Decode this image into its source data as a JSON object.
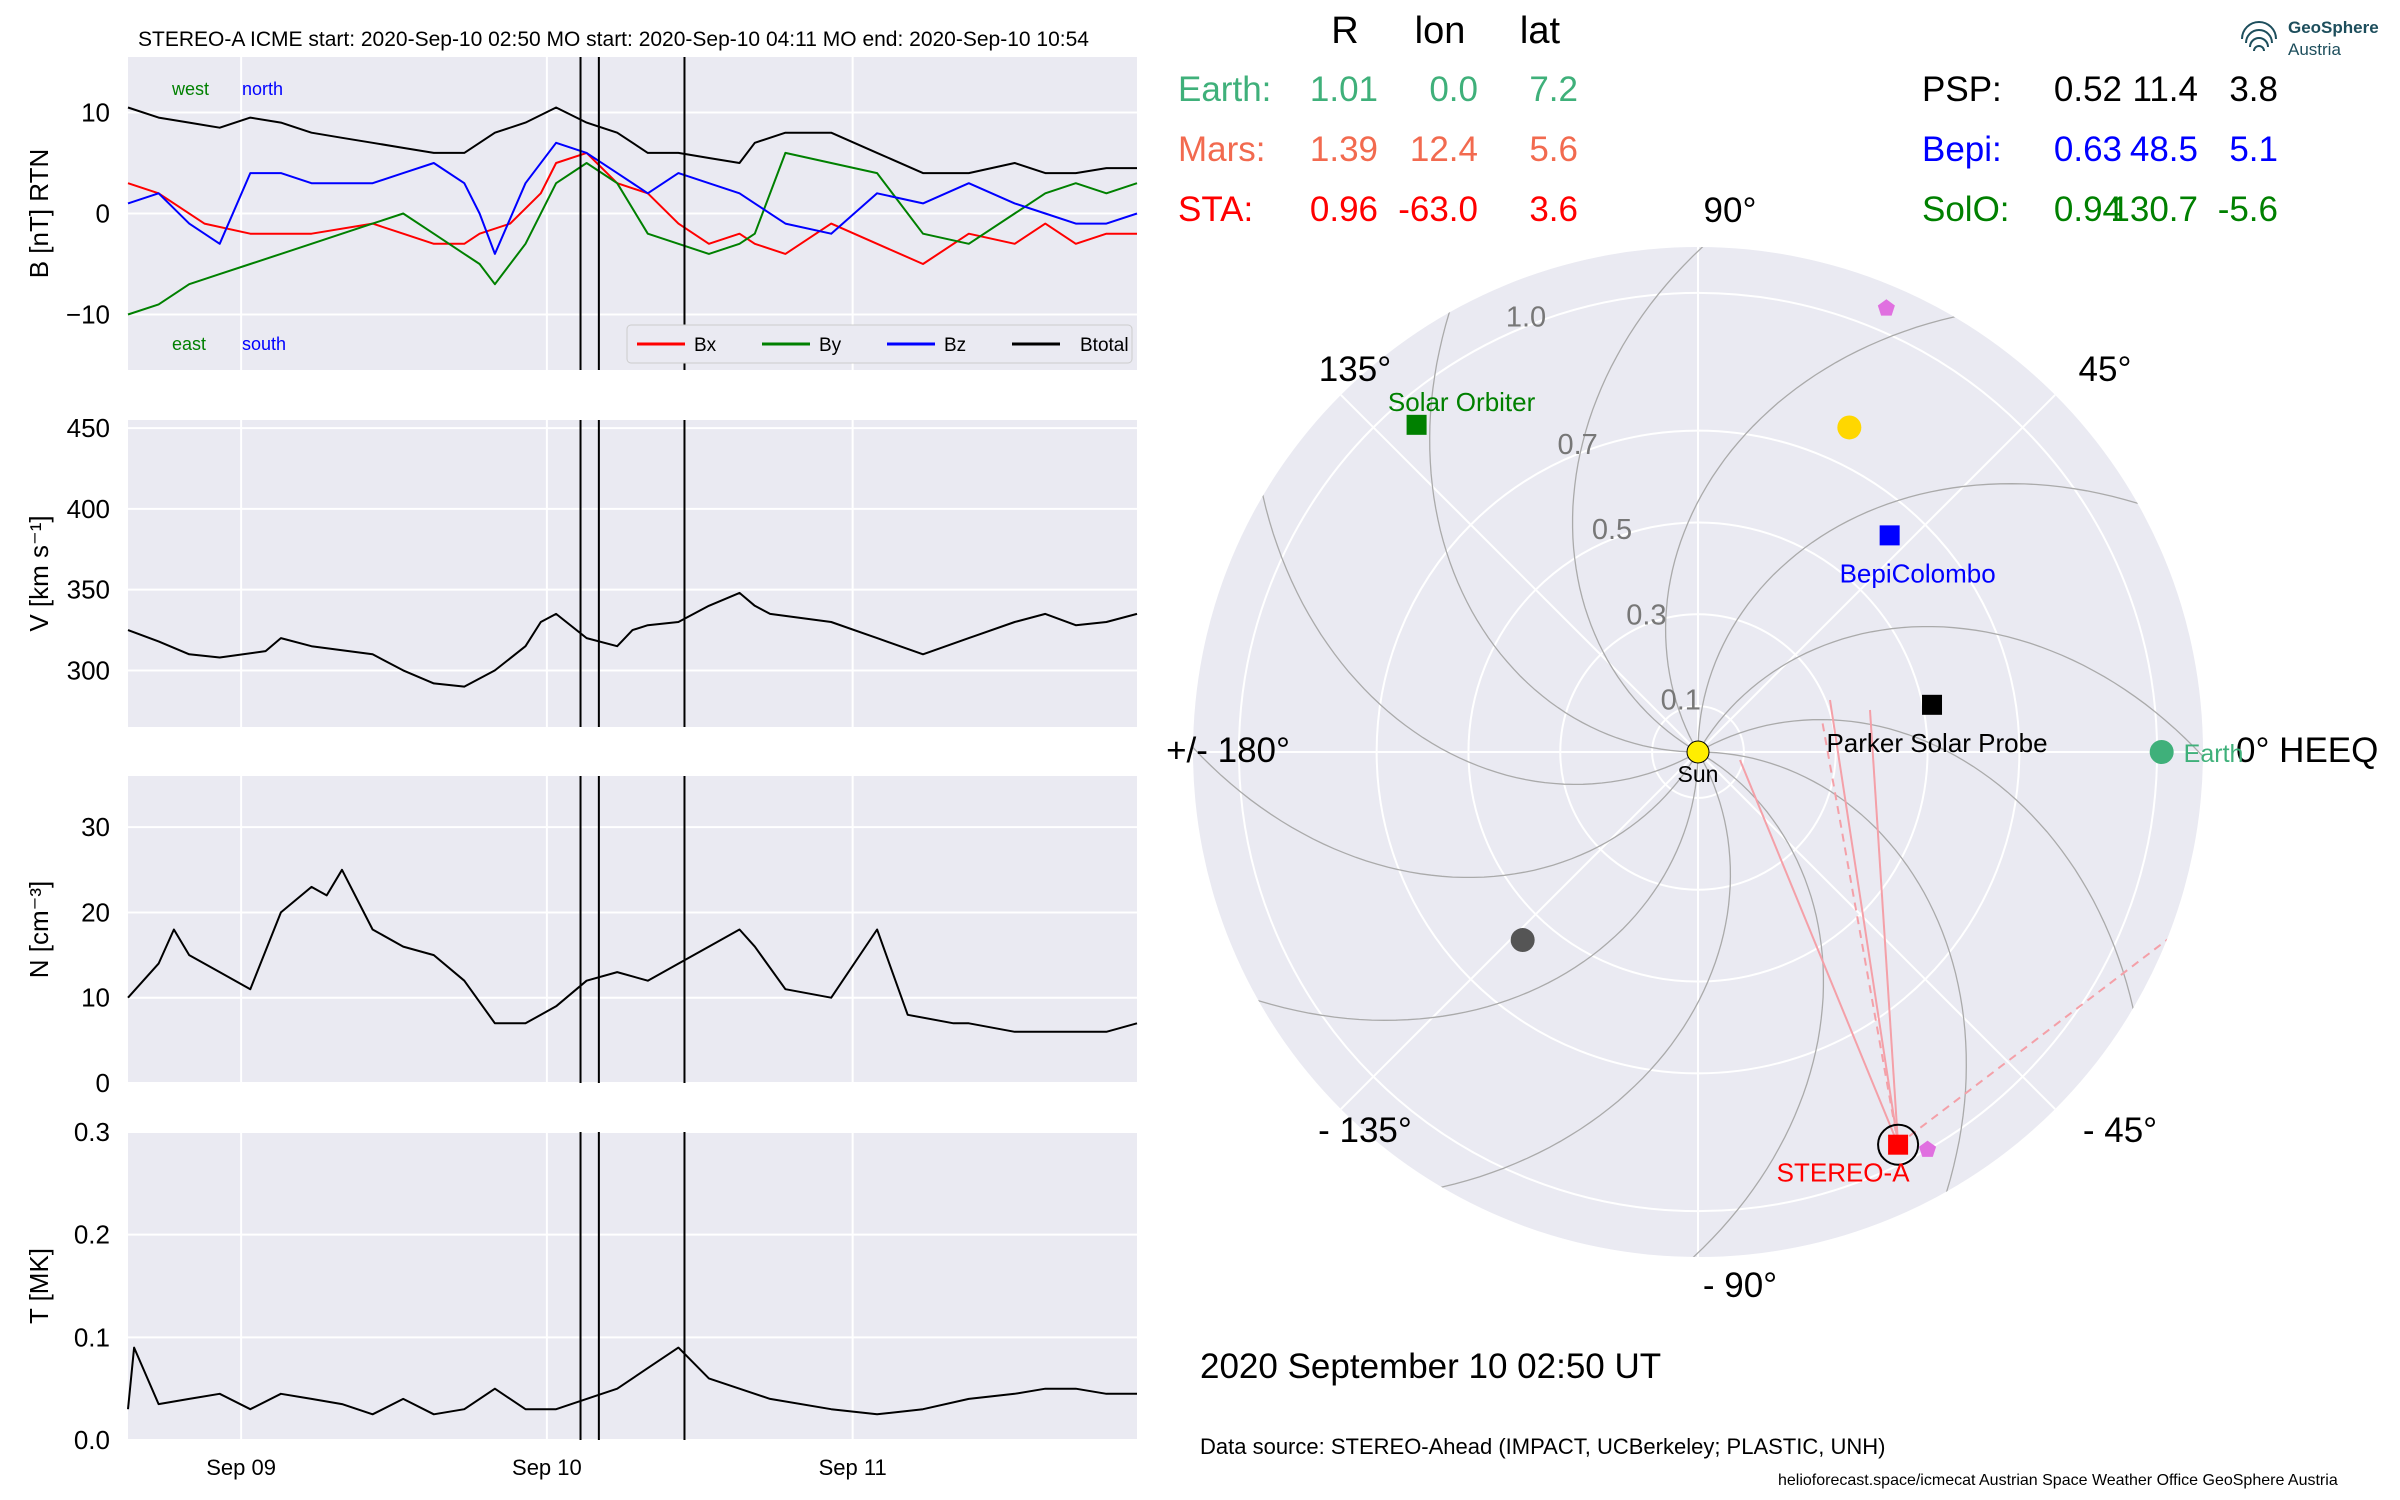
{
  "header": {
    "title": "STEREO-A    ICME start: 2020-Sep-10 02:50    MO start: 2020-Sep-10 04:11    MO end: 2020-Sep-10 10:54"
  },
  "logo": {
    "line1": "GeoSphere",
    "line2": "Austria"
  },
  "colors": {
    "earth": "#3fb07a",
    "mars": "#f26a4f",
    "sta": "#ff0000",
    "psp": "#000000",
    "bepi": "#0000ff",
    "solo": "#008000",
    "panel_bg": "#eaeaf2",
    "pink": "#e070e0"
  },
  "position_table": {
    "headers": [
      "R",
      "lon",
      "lat"
    ],
    "left": [
      {
        "name": "Earth:",
        "R": "1.01",
        "lon": "0.0",
        "lat": "7.2"
      },
      {
        "name": "Mars:",
        "R": "1.39",
        "lon": "12.4",
        "lat": "5.6"
      },
      {
        "name": "STA:",
        "R": "0.96",
        "lon": "-63.0",
        "lat": "3.6"
      }
    ],
    "right": [
      {
        "name": "PSP:",
        "R": "0.52",
        "lon": "11.4",
        "lat": "3.8"
      },
      {
        "name": "Bepi:",
        "R": "0.63",
        "lon": "48.5",
        "lat": "5.1"
      },
      {
        "name": "SolO:",
        "R": "0.94",
        "lon": "130.7",
        "lat": "-5.6"
      }
    ]
  },
  "polar_plot": {
    "angle_labels": [
      "90°",
      "45°",
      "0° HEEQ",
      "- 45°",
      "- 90°",
      "- 135°",
      "+/- 180°",
      "135°"
    ],
    "radial_labels": [
      "0.1",
      "0.3",
      "0.5",
      "0.7",
      "1.0"
    ],
    "radial_values": [
      0.1,
      0.3,
      0.5,
      0.7,
      1.0
    ],
    "bodies": [
      {
        "label": "Sun",
        "r": 0.0,
        "lon": 0,
        "marker": "circle",
        "color": "#ffee00"
      },
      {
        "label": "Earth",
        "r": 1.01,
        "lon": 0.0,
        "marker": "circle",
        "color": "#3fb07a"
      },
      {
        "label": "Parker Solar Probe",
        "r": 0.52,
        "lon": 11.4,
        "marker": "square",
        "color": "#000000"
      },
      {
        "label": "BepiColombo",
        "r": 0.63,
        "lon": 48.5,
        "marker": "square",
        "color": "#0000ff"
      },
      {
        "label": "Solar Orbiter",
        "r": 0.94,
        "lon": 130.7,
        "marker": "square",
        "color": "#008000"
      },
      {
        "label": "STEREO-A",
        "r": 0.96,
        "lon": -63.0,
        "marker": "square",
        "color": "#ff0000"
      },
      {
        "label": "",
        "r": 0.78,
        "lon": 65.0,
        "marker": "circle",
        "color": "#ffd700"
      },
      {
        "label": "",
        "r": 0.56,
        "lon": -133.0,
        "marker": "circle",
        "color": "#555555"
      },
      {
        "label": "",
        "r": 1.05,
        "lon": 67.0,
        "marker": "pentagon",
        "color": "#e070e0"
      },
      {
        "label": "",
        "r": 1.0,
        "lon": -60.0,
        "marker": "pentagon",
        "color": "#e070e0"
      }
    ],
    "date": "2020 September 10  02:50 UT"
  },
  "footer": {
    "data_source": "Data source: STEREO-Ahead (IMPACT, UCBerkeley; PLASTIC, UNH)",
    "credits": "helioforecast.space/icmecat   Austrian Space Weather Office   GeoSphere Austria"
  },
  "chart_data": [
    {
      "type": "line",
      "ylabel": "B [nT] RTN",
      "ylim": [
        -15.5,
        15.5
      ],
      "yticks": [
        10,
        0,
        -10
      ],
      "ytick_labels": [
        "10",
        "0",
        "−10"
      ],
      "annotations": [
        "west",
        "north",
        "east",
        "south"
      ],
      "legend": "bottom-right",
      "series": [
        {
          "name": "Bx",
          "color": "#ff0000",
          "x": [
            0.0,
            0.1,
            0.25,
            0.4,
            0.6,
            0.8,
            0.9,
            1.0,
            1.1,
            1.15,
            1.25,
            1.35,
            1.4,
            1.5,
            1.6,
            1.7,
            1.8,
            1.9,
            2.0,
            2.05,
            2.15,
            2.3,
            2.45,
            2.6,
            2.75,
            2.9,
            3.0,
            3.1,
            3.2,
            3.3
          ],
          "values": [
            3,
            2,
            -1,
            -2,
            -2,
            -1,
            -2,
            -3,
            -3,
            -2,
            -1,
            2,
            5,
            6,
            3,
            2,
            -1,
            -3,
            -2,
            -3,
            -4,
            -1,
            -3,
            -5,
            -2,
            -3,
            -1,
            -3,
            -2,
            -2
          ]
        },
        {
          "name": "By",
          "color": "#008000",
          "x": [
            0.0,
            0.1,
            0.2,
            0.3,
            0.4,
            0.5,
            0.6,
            0.7,
            0.8,
            0.9,
            1.0,
            1.1,
            1.15,
            1.2,
            1.3,
            1.4,
            1.5,
            1.6,
            1.7,
            1.8,
            1.9,
            2.0,
            2.05,
            2.15,
            2.3,
            2.45,
            2.6,
            2.75,
            2.9,
            3.0,
            3.1,
            3.2,
            3.3
          ],
          "values": [
            -10,
            -9,
            -7,
            -6,
            -5,
            -4,
            -3,
            -2,
            -1,
            0,
            -2,
            -4,
            -5,
            -7,
            -3,
            3,
            5,
            3,
            -2,
            -3,
            -4,
            -3,
            -2,
            6,
            5,
            4,
            -2,
            -3,
            0,
            2,
            3,
            2,
            3
          ]
        },
        {
          "name": "Bz",
          "color": "#0000ff",
          "x": [
            0.0,
            0.1,
            0.2,
            0.3,
            0.4,
            0.5,
            0.6,
            0.7,
            0.8,
            0.9,
            1.0,
            1.1,
            1.15,
            1.2,
            1.3,
            1.4,
            1.5,
            1.6,
            1.7,
            1.8,
            1.9,
            2.0,
            2.05,
            2.15,
            2.3,
            2.45,
            2.6,
            2.75,
            2.9,
            3.0,
            3.1,
            3.2,
            3.3
          ],
          "values": [
            1,
            2,
            -1,
            -3,
            4,
            4,
            3,
            3,
            3,
            4,
            5,
            3,
            0,
            -4,
            3,
            7,
            6,
            4,
            2,
            4,
            3,
            2,
            1,
            -1,
            -2,
            2,
            1,
            3,
            1,
            0,
            -1,
            -1,
            0
          ]
        },
        {
          "name": "Btotal",
          "color": "#000000",
          "x": [
            0.0,
            0.1,
            0.2,
            0.3,
            0.4,
            0.5,
            0.6,
            0.7,
            0.8,
            0.9,
            1.0,
            1.1,
            1.15,
            1.2,
            1.3,
            1.4,
            1.5,
            1.6,
            1.7,
            1.8,
            1.9,
            2.0,
            2.05,
            2.15,
            2.3,
            2.45,
            2.6,
            2.75,
            2.9,
            3.0,
            3.1,
            3.2,
            3.3
          ],
          "values": [
            10.5,
            9.5,
            9,
            8.5,
            9.5,
            9,
            8,
            7.5,
            7,
            6.5,
            6,
            6,
            7,
            8,
            9,
            10.5,
            9,
            8,
            6,
            6,
            5.5,
            5,
            7,
            8,
            8,
            6,
            4,
            4,
            5,
            4,
            4,
            4.5,
            4.5
          ]
        }
      ]
    },
    {
      "type": "line",
      "ylabel": "V [km s⁻¹]",
      "ylim": [
        265,
        455
      ],
      "yticks": [
        300,
        350,
        400,
        450
      ],
      "ytick_labels": [
        "300",
        "350",
        "400",
        "450"
      ],
      "series": [
        {
          "name": "",
          "color": "#000000",
          "x": [
            0.0,
            0.1,
            0.2,
            0.3,
            0.45,
            0.5,
            0.6,
            0.8,
            0.9,
            1.0,
            1.1,
            1.2,
            1.3,
            1.35,
            1.4,
            1.5,
            1.6,
            1.65,
            1.7,
            1.8,
            1.9,
            2.0,
            2.05,
            2.1,
            2.3,
            2.45,
            2.6,
            2.75,
            2.9,
            3.0,
            3.1,
            3.2,
            3.3
          ],
          "values": [
            325,
            318,
            310,
            308,
            312,
            320,
            315,
            310,
            300,
            292,
            290,
            300,
            315,
            330,
            335,
            320,
            315,
            325,
            328,
            330,
            340,
            348,
            340,
            335,
            330,
            320,
            310,
            320,
            330,
            335,
            328,
            330,
            335
          ]
        }
      ]
    },
    {
      "type": "line",
      "ylabel": "N [cm⁻³]",
      "ylim": [
        0,
        36
      ],
      "yticks": [
        0,
        10,
        20,
        30
      ],
      "ytick_labels": [
        "0",
        "10",
        "20",
        "30"
      ],
      "series": [
        {
          "name": "",
          "color": "#000000",
          "x": [
            0.0,
            0.1,
            0.15,
            0.2,
            0.3,
            0.4,
            0.5,
            0.6,
            0.65,
            0.7,
            0.8,
            0.9,
            1.0,
            1.1,
            1.2,
            1.3,
            1.4,
            1.5,
            1.6,
            1.7,
            1.8,
            1.9,
            2.0,
            2.05,
            2.15,
            2.3,
            2.45,
            2.55,
            2.7,
            2.75,
            2.9,
            3.0,
            3.1,
            3.2,
            3.3
          ],
          "values": [
            10,
            14,
            18,
            15,
            13,
            11,
            20,
            23,
            22,
            25,
            18,
            16,
            15,
            12,
            7,
            7,
            9,
            12,
            13,
            12,
            14,
            16,
            18,
            16,
            11,
            10,
            18,
            8,
            7,
            7,
            6,
            6,
            6,
            6,
            7
          ]
        }
      ]
    },
    {
      "type": "line",
      "ylabel": "T [MK]",
      "ylim": [
        0,
        0.3
      ],
      "yticks": [
        0.0,
        0.1,
        0.2,
        0.3
      ],
      "ytick_labels": [
        "0.0",
        "0.1",
        "0.2",
        "0.3"
      ],
      "series": [
        {
          "name": "",
          "color": "#000000",
          "x": [
            0.0,
            0.02,
            0.1,
            0.2,
            0.3,
            0.4,
            0.5,
            0.6,
            0.7,
            0.8,
            0.9,
            1.0,
            1.1,
            1.2,
            1.3,
            1.4,
            1.5,
            1.6,
            1.7,
            1.8,
            1.9,
            2.0,
            2.1,
            2.3,
            2.45,
            2.6,
            2.75,
            2.9,
            3.0,
            3.1,
            3.2,
            3.3
          ],
          "values": [
            0.03,
            0.09,
            0.035,
            0.04,
            0.045,
            0.03,
            0.045,
            0.04,
            0.035,
            0.025,
            0.04,
            0.025,
            0.03,
            0.05,
            0.03,
            0.03,
            0.04,
            0.05,
            0.07,
            0.09,
            0.06,
            0.05,
            0.04,
            0.03,
            0.025,
            0.03,
            0.04,
            0.045,
            0.05,
            0.05,
            0.045,
            0.045
          ]
        }
      ]
    }
  ],
  "time_axis": {
    "tick_labels": [
      "Sep 09",
      "Sep 10",
      "Sep 11"
    ],
    "tick_positions": [
      0.37,
      1.37,
      2.37
    ],
    "range": [
      0,
      3.3
    ],
    "event_lines": [
      1.48,
      1.54,
      1.82
    ]
  }
}
